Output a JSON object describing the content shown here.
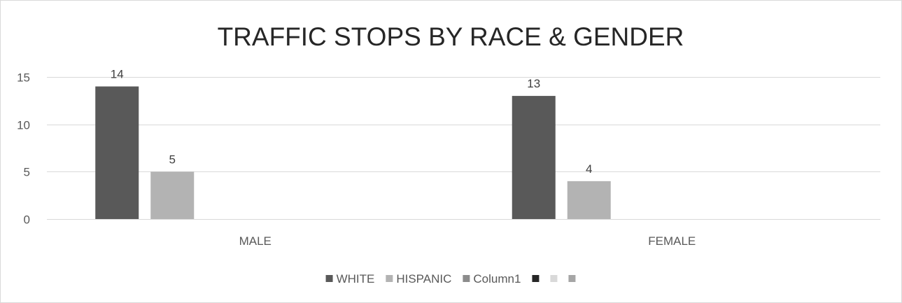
{
  "chart_data": {
    "type": "bar",
    "title": "TRAFFIC STOPS BY RACE & GENDER",
    "categories": [
      "MALE",
      "FEMALE"
    ],
    "series": [
      {
        "name": "WHITE",
        "values": [
          14,
          13
        ],
        "color": "#595959"
      },
      {
        "name": "HISPANIC",
        "values": [
          5,
          4
        ],
        "color": "#b3b3b3"
      },
      {
        "name": "Column1",
        "values": [
          0,
          0
        ],
        "color": "#8c8c8c"
      },
      {
        "name": "",
        "values": [
          0,
          0
        ],
        "color": "#262626"
      },
      {
        "name": "",
        "values": [
          0,
          0
        ],
        "color": "#d9d9d9"
      },
      {
        "name": "",
        "values": [
          0,
          0
        ],
        "color": "#a6a6a6"
      }
    ],
    "data_labels": [
      {
        "series": "WHITE",
        "values": [
          "14",
          "13"
        ]
      },
      {
        "series": "HISPANIC",
        "values": [
          "5",
          "4"
        ]
      }
    ],
    "yticks": [
      0,
      5,
      10,
      15
    ],
    "ylim": [
      0,
      15
    ],
    "grid": true,
    "legend_position": "bottom"
  }
}
